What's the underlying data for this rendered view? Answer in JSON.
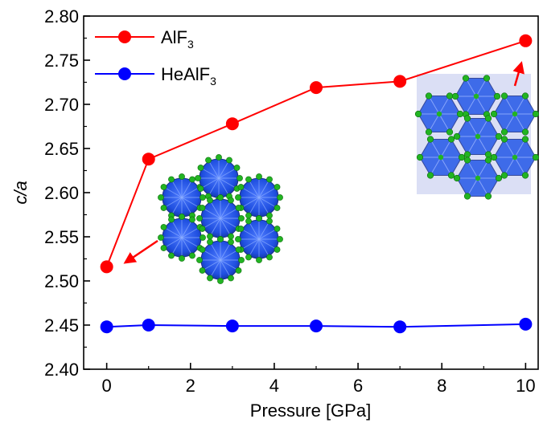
{
  "chart_data": {
    "type": "line",
    "xlabel": "Pressure [GPa]",
    "ylabel": "c/a",
    "xlim": [
      -0.55,
      10.3
    ],
    "ylim": [
      2.4,
      2.8
    ],
    "xticks": [
      0,
      2,
      4,
      6,
      8,
      10
    ],
    "yticks": [
      2.4,
      2.45,
      2.5,
      2.55,
      2.6,
      2.65,
      2.7,
      2.75,
      2.8
    ],
    "legend_position": "top-left",
    "series": [
      {
        "name": "AlF",
        "name_subscript": "3",
        "color": "#ff0000",
        "x": [
          0,
          1,
          3,
          5,
          7,
          10
        ],
        "y": [
          2.516,
          2.638,
          2.678,
          2.719,
          2.726,
          2.772
        ]
      },
      {
        "name": "HeAlF",
        "name_subscript": "3",
        "color": "#0000ff",
        "x": [
          0,
          1,
          3,
          5,
          7,
          10
        ],
        "y": [
          2.448,
          2.45,
          2.449,
          2.449,
          2.448,
          2.451
        ]
      }
    ],
    "insets": [
      {
        "name": "hexagonal-polyhedra-structure-low-pressure",
        "points_to_series": 0,
        "points_to_index": 0
      },
      {
        "name": "hexagonal-polyhedra-structure-high-pressure",
        "points_to_series": 0,
        "points_to_index": 5
      }
    ]
  }
}
